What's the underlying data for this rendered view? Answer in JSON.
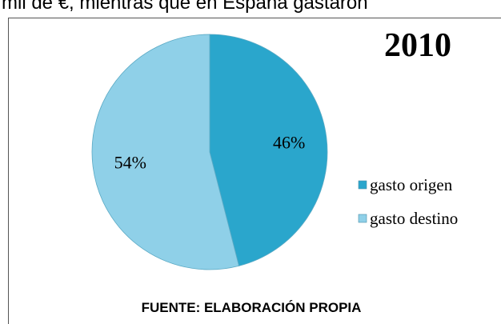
{
  "header_text": "mil de €, mientras que en España gastaron",
  "chart_data": {
    "type": "pie",
    "title": "2010",
    "categories": [
      "gasto origen",
      "gasto destino"
    ],
    "values": [
      46,
      54
    ],
    "value_labels": [
      "46%",
      "54%"
    ],
    "colors": [
      "#2aa6cc",
      "#8fd0e8"
    ],
    "legend": "right"
  },
  "source": "FUENTE: ELABORACIÓN PROPIA"
}
